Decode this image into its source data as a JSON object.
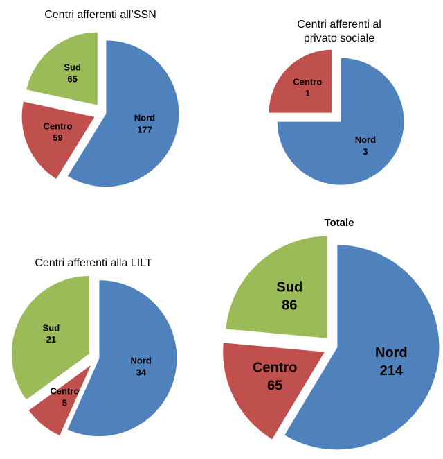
{
  "chart_data": [
    {
      "type": "pie",
      "title": "Centri afferenti all’SSN",
      "categories": [
        "Nord",
        "Centro",
        "Sud"
      ],
      "values": [
        177,
        59,
        65
      ],
      "colors": [
        "#4f81bd",
        "#c0504d",
        "#9bbb59"
      ]
    },
    {
      "type": "pie",
      "title": "Centri afferenti al privato sociale",
      "categories": [
        "Nord",
        "Centro"
      ],
      "values": [
        3,
        1
      ],
      "colors": [
        "#4f81bd",
        "#c0504d"
      ]
    },
    {
      "type": "pie",
      "title": "Centri afferenti alla LILT",
      "categories": [
        "Nord",
        "Centro",
        "Sud"
      ],
      "values": [
        34,
        5,
        21
      ],
      "colors": [
        "#4f81bd",
        "#c0504d",
        "#9bbb59"
      ]
    },
    {
      "type": "pie",
      "title": "Totale",
      "categories": [
        "Nord",
        "Centro",
        "Sud"
      ],
      "values": [
        214,
        65,
        86
      ],
      "colors": [
        "#4f81bd",
        "#c0504d",
        "#9bbb59"
      ]
    }
  ]
}
